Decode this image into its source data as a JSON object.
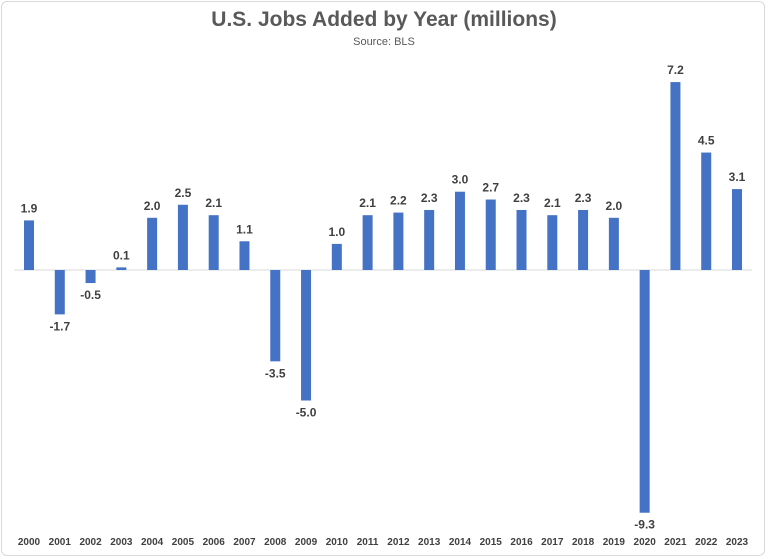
{
  "chart_data": {
    "type": "bar",
    "title": "U.S. Jobs Added by Year (millions)",
    "subtitle": "Source: BLS",
    "xlabel": "",
    "ylabel": "",
    "categories": [
      "2000",
      "2001",
      "2002",
      "2003",
      "2004",
      "2005",
      "2006",
      "2007",
      "2008",
      "2009",
      "2010",
      "2011",
      "2012",
      "2013",
      "2014",
      "2015",
      "2016",
      "2017",
      "2018",
      "2019",
      "2020",
      "2021",
      "2022",
      "2023"
    ],
    "values": [
      1.9,
      -1.7,
      -0.5,
      0.1,
      2.0,
      2.5,
      2.1,
      1.1,
      -3.5,
      -5.0,
      1.0,
      2.1,
      2.2,
      2.3,
      3.0,
      2.7,
      2.3,
      2.1,
      2.3,
      2.0,
      -9.3,
      7.2,
      4.5,
      3.1
    ],
    "ylim": [
      -9.3,
      7.2
    ],
    "grid": false,
    "bar_color": "#4472c4",
    "axis_color": "#d9d9d9"
  }
}
